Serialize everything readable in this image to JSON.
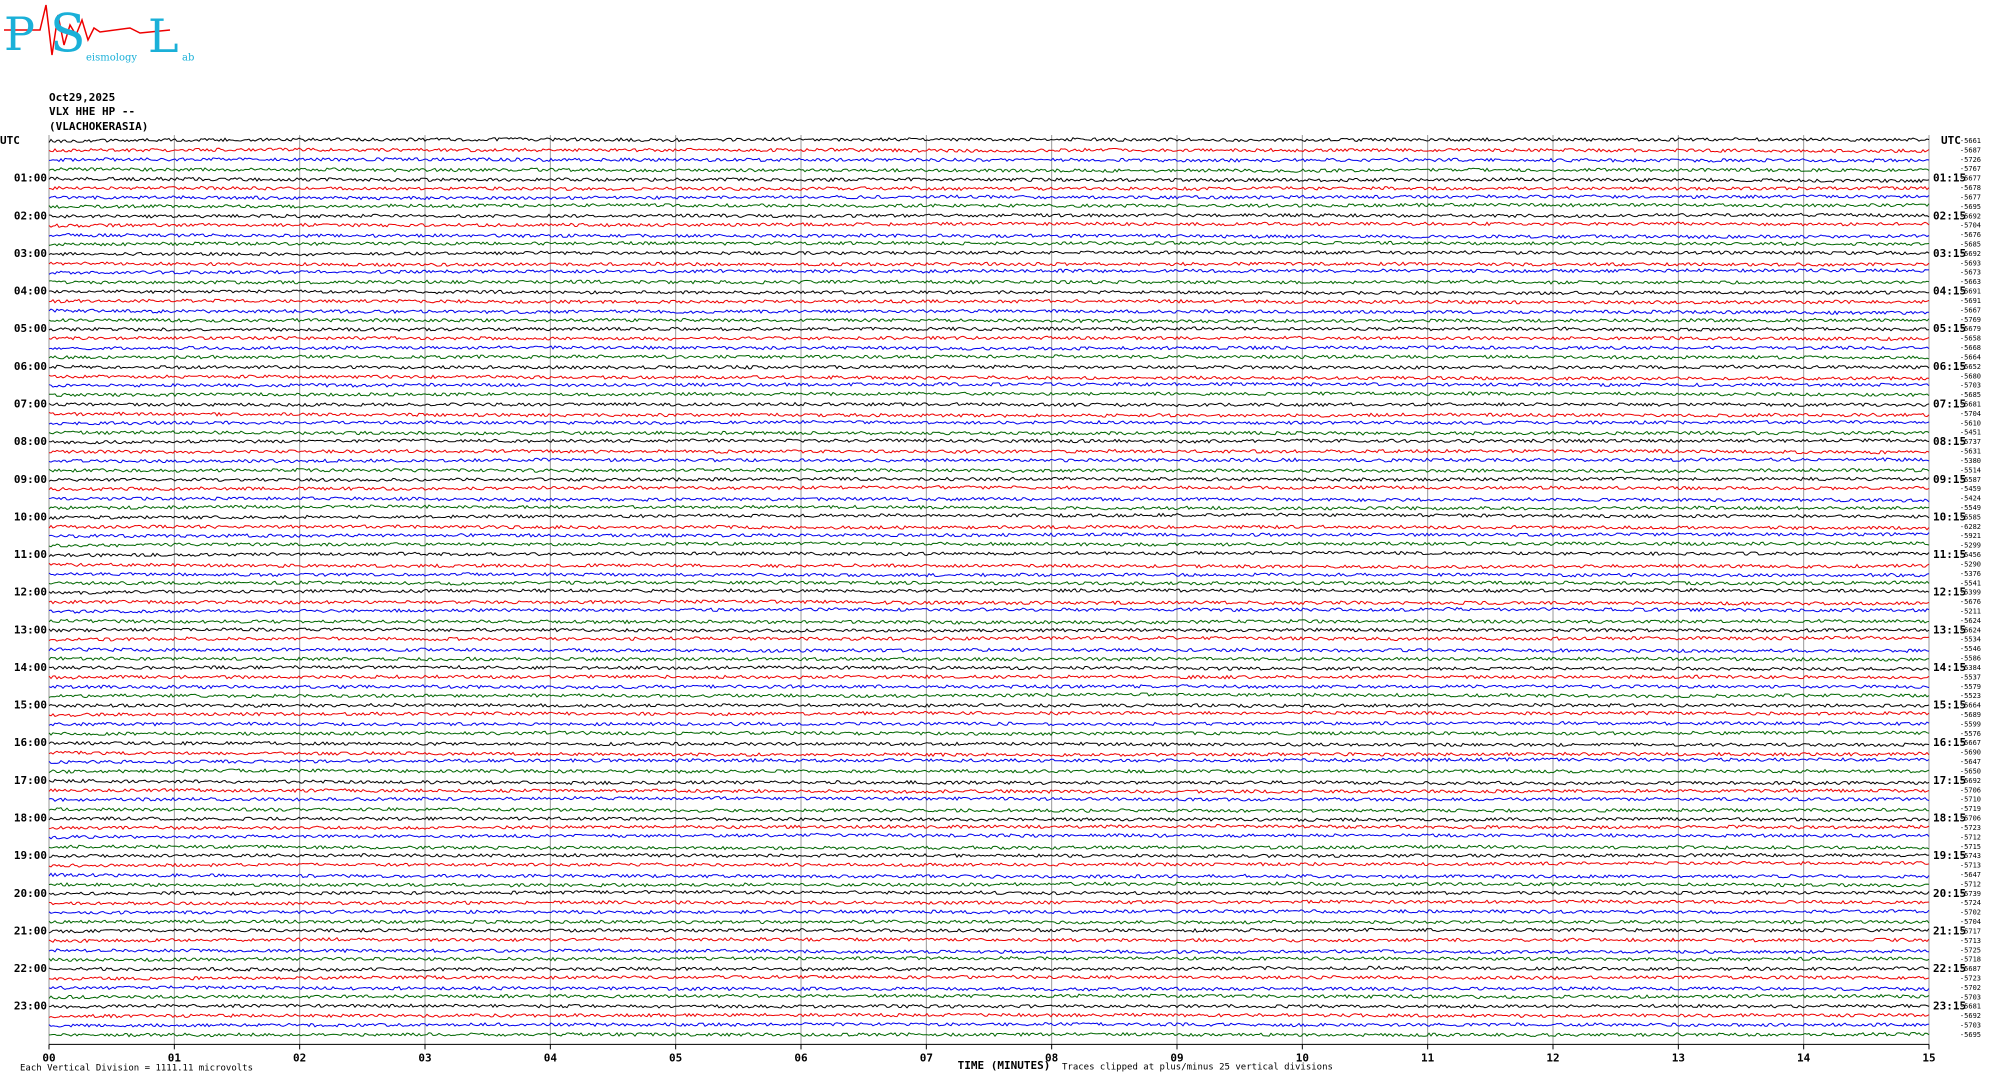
{
  "logo": {
    "letters": [
      "P",
      "S",
      "L"
    ],
    "small": [
      "eismology",
      "ab"
    ]
  },
  "header": {
    "date": "Oct29,2025",
    "channel": "VLX HHE HP --",
    "station": "(VLACHOKERASIA)"
  },
  "left_labels": [
    "UTC",
    "01:00",
    "02:00",
    "03:00",
    "04:00",
    "05:00",
    "06:00",
    "07:00",
    "08:00",
    "09:00",
    "10:00",
    "11:00",
    "12:00",
    "13:00",
    "14:00",
    "15:00",
    "16:00",
    "17:00",
    "18:00",
    "19:00",
    "20:00",
    "21:00",
    "22:00",
    "23:00"
  ],
  "right_labels": [
    "UTC",
    "01:15",
    "02:15",
    "03:15",
    "04:15",
    "05:15",
    "06:15",
    "07:15",
    "08:15",
    "09:15",
    "10:15",
    "11:15",
    "12:15",
    "13:15",
    "14:15",
    "15:15",
    "16:15",
    "17:15",
    "18:15",
    "19:15",
    "20:15",
    "21:15",
    "22:15",
    "23:15"
  ],
  "trace_offsets": [
    "-5661",
    "-5687",
    "-5726",
    "-5767",
    "-5677",
    "-5678",
    "-5677",
    "-5695",
    "-5692",
    "-5704",
    "-5676",
    "-5685",
    "-5692",
    "-5693",
    "-5673",
    "-5663",
    "-5691",
    "-5691",
    "-5667",
    "-5769",
    "-5679",
    "-5658",
    "-5668",
    "-5664",
    "-5652",
    "-5680",
    "-5703",
    "-5685",
    "-5681",
    "-5704",
    "-5610",
    "-5451",
    "-5737",
    "-5631",
    "-5380",
    "-5514",
    "-5587",
    "-5459",
    "-5424",
    "-5549",
    "-5585",
    "-6282",
    "-5921",
    "-5299",
    "-5456",
    "-5290",
    "-5376",
    "-5541",
    "-5399",
    "-5676",
    "-5211",
    "-5624",
    "-5624",
    "-5534",
    "-5546",
    "-5586",
    "-5384",
    "-5537",
    "-5579",
    "-5523",
    "-5664",
    "-5689",
    "-5599",
    "-5576",
    "-5667",
    "-5690",
    "-5647",
    "-5650",
    "-5692",
    "-5706",
    "-5710",
    "-5719",
    "-5706",
    "-5723",
    "-5712",
    "-5715",
    "-5743",
    "-5713",
    "-5647",
    "-5712",
    "-5739",
    "-5724",
    "-5702",
    "-5704",
    "-5717",
    "-5713",
    "-5725",
    "-5718",
    "-5687",
    "-5723",
    "-5702",
    "-5703",
    "-5681",
    "-5692",
    "-5703",
    "-5695"
  ],
  "x_ticks": [
    "00",
    "01",
    "02",
    "03",
    "04",
    "05",
    "06",
    "07",
    "08",
    "09",
    "10",
    "11",
    "12",
    "13",
    "14",
    "15"
  ],
  "footer": {
    "scale": "Each Vertical Division = 1111.11 microvolts",
    "axis_title": "TIME (MINUTES)",
    "clip_note": "Traces clipped at plus/minus 25 vertical divisions"
  }
}
